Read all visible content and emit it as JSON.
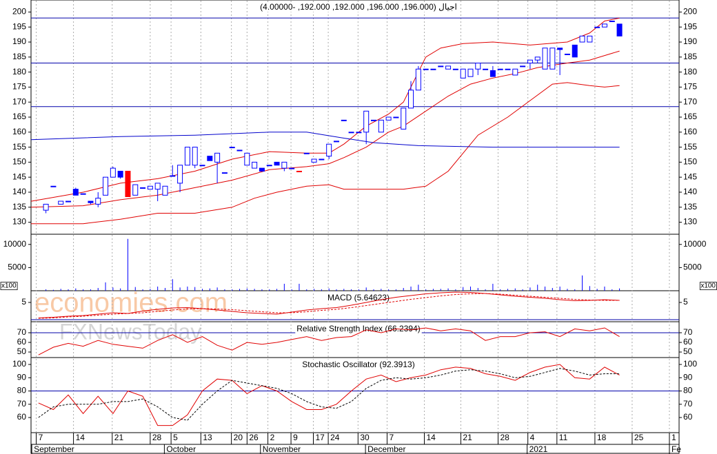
{
  "watermarks": [
    "economies.com",
    "FXNewsToday"
  ],
  "chart_data": [
    {
      "type": "candlestick",
      "title": "اجيال (196.000, 196.000, 192.000, 192.000, -4.00000)",
      "x": [
        0,
        1,
        2,
        3,
        4,
        5,
        6,
        7,
        8,
        9,
        10,
        11,
        12,
        13,
        14,
        15,
        16,
        17,
        18,
        19,
        20,
        21,
        22,
        23,
        24,
        25,
        26,
        27,
        28,
        29,
        30,
        31,
        32,
        33,
        34,
        35,
        36,
        37,
        38,
        39,
        40,
        41,
        42,
        43,
        44,
        45,
        46,
        47,
        48,
        49,
        50,
        51,
        52,
        53,
        54,
        55,
        56,
        57,
        58,
        59,
        60,
        61,
        62,
        63,
        64,
        65,
        66,
        67,
        68,
        69,
        70,
        71,
        72,
        73,
        74,
        75,
        76,
        77
      ],
      "open": [
        134,
        142,
        136,
        137,
        141,
        139.5,
        137,
        136,
        139,
        145,
        147,
        147,
        139,
        141.5,
        141,
        141,
        139,
        145.5,
        143,
        149,
        149,
        149,
        152,
        150,
        146.5,
        155,
        154,
        149,
        148,
        148,
        149,
        150,
        148,
        148,
        147,
        153,
        150,
        151,
        152,
        157,
        164,
        160,
        160,
        160,
        164,
        160,
        164,
        165,
        161,
        168,
        174,
        181,
        181,
        182,
        181,
        181,
        178,
        178.5,
        181,
        181,
        180.5,
        181,
        181,
        179,
        182,
        183,
        184,
        181,
        181,
        188,
        186,
        189,
        190,
        190,
        195,
        195,
        197,
        196
      ],
      "high": [
        136,
        142,
        137,
        137,
        141.5,
        139.5,
        137,
        140,
        145,
        148.5,
        147,
        147,
        142.5,
        141.5,
        142,
        143,
        142,
        149,
        149,
        155,
        155,
        149,
        152,
        153,
        146.5,
        155,
        154,
        153,
        150,
        148,
        149,
        150,
        150,
        148,
        147,
        153,
        151,
        151,
        156,
        157,
        164,
        160,
        160,
        167,
        164,
        164,
        165,
        165,
        168,
        177,
        182,
        181,
        181,
        182,
        182,
        181,
        181,
        181,
        183,
        181,
        182,
        181,
        181,
        181,
        182,
        184,
        185,
        188,
        188,
        188,
        186,
        189,
        192,
        192,
        195,
        196,
        197,
        196
      ],
      "low": [
        133,
        142,
        136,
        137,
        139,
        139.5,
        136,
        135,
        139,
        145,
        144.5,
        138.5,
        139,
        141.5,
        141,
        137,
        139,
        145.5,
        140,
        149,
        148,
        149,
        150.5,
        143,
        146.5,
        155,
        154,
        149,
        148,
        147,
        149,
        149,
        147,
        148,
        147,
        153,
        150,
        151,
        151,
        157,
        164,
        160,
        160,
        156,
        164,
        160,
        164,
        165,
        161,
        168,
        174,
        181,
        181,
        182,
        181,
        181,
        178,
        178.5,
        179,
        181,
        178.5,
        181,
        181,
        179,
        182,
        181,
        183,
        181,
        181,
        179,
        186,
        185,
        190,
        190,
        195,
        195,
        197,
        192
      ],
      "close": [
        136,
        142,
        137,
        137,
        139,
        139.5,
        136.5,
        138,
        145,
        148,
        145,
        138.5,
        142.5,
        141.5,
        142,
        143,
        142,
        145.5,
        149,
        155,
        155,
        149,
        150.5,
        153,
        146.5,
        155,
        154,
        153,
        150,
        147,
        149,
        149,
        150,
        148,
        147,
        153,
        151,
        151,
        156,
        157,
        164,
        160,
        160,
        167,
        164,
        164,
        165,
        165,
        168,
        174,
        181,
        181,
        181,
        182,
        182,
        181,
        181,
        181,
        183,
        181,
        178.5,
        181,
        181,
        181,
        182,
        184,
        185,
        188,
        188,
        187.5,
        186,
        185,
        192,
        192,
        195,
        196,
        197,
        192
      ],
      "colors": [
        "#0000ff",
        "#0000ff",
        "#0000ff",
        "#0000ff",
        "#0000ff",
        "#0000ff",
        "#0000ff",
        "#0000ff",
        "#0000ff",
        "#0000ff",
        "#0000ff",
        "#ff0000",
        "#0000ff",
        "#0000ff",
        "#0000ff",
        "#0000ff",
        "#0000ff",
        "#0000ff",
        "#0000ff",
        "#0000ff",
        "#0000ff",
        "#0000ff",
        "#0000ff",
        "#0000ff",
        "#0000ff",
        "#0000ff",
        "#0000ff",
        "#0000ff",
        "#0000ff",
        "#0000ff",
        "#0000ff",
        "#0000ff",
        "#0000ff",
        "#0000ff",
        "#ff0000",
        "#0000ff",
        "#0000ff",
        "#0000ff",
        "#0000ff",
        "#0000ff",
        "#0000ff",
        "#0000ff",
        "#0000ff",
        "#0000ff",
        "#0000ff",
        "#0000ff",
        "#0000ff",
        "#0000ff",
        "#0000ff",
        "#0000ff",
        "#0000ff",
        "#0000ff",
        "#0000ff",
        "#0000ff",
        "#0000ff",
        "#0000ff",
        "#0000ff",
        "#0000ff",
        "#0000ff",
        "#0000ff",
        "#0000ff",
        "#0000ff",
        "#0000ff",
        "#0000ff",
        "#0000ff",
        "#0000ff",
        "#0000ff",
        "#0000ff",
        "#0000ff",
        "#0000ff",
        "#0000ff",
        "#0000ff",
        "#0000ff",
        "#0000ff",
        "#0000ff",
        "#0000ff",
        "#0000ff",
        "#0000ff"
      ],
      "series": [
        {
          "color": "#e00000",
          "x": [
            -2,
            5,
            10,
            15,
            20,
            25,
            30,
            35,
            38,
            40,
            43,
            46,
            48,
            51,
            53,
            56,
            60,
            65,
            70,
            73,
            75,
            77
          ],
          "values": [
            137,
            140,
            143,
            144.5,
            147,
            151,
            153.5,
            153,
            153,
            156,
            162,
            166,
            170,
            185,
            188,
            189.5,
            190,
            189,
            190,
            193,
            197,
            198
          ]
        },
        {
          "color": "#e00000",
          "x": [
            -2,
            5,
            10,
            15,
            20,
            25,
            30,
            35,
            38,
            40,
            43,
            46,
            48,
            51,
            54,
            57,
            60,
            63,
            66,
            70,
            73,
            75,
            77
          ],
          "values": [
            135,
            135.5,
            137.5,
            139,
            141.5,
            144,
            147.5,
            148.5,
            149.5,
            151.5,
            155,
            160,
            162,
            167,
            172,
            176,
            178,
            179.5,
            181.5,
            183,
            184,
            185.5,
            187
          ]
        },
        {
          "color": "#e00000",
          "x": [
            -2,
            5,
            10,
            15,
            20,
            25,
            28,
            31,
            35,
            38,
            40,
            43,
            48,
            51,
            54,
            58,
            62,
            65,
            68,
            70,
            73,
            75,
            77
          ],
          "values": [
            129.5,
            129.5,
            131,
            133,
            133,
            135,
            138,
            140,
            142,
            142.5,
            141,
            141,
            141,
            142,
            147,
            159,
            165,
            170.5,
            176,
            176.5,
            175.5,
            175,
            175.5
          ]
        },
        {
          "color": "#0000cc",
          "x": [
            -2,
            10,
            20,
            30,
            35,
            40,
            44,
            50,
            60,
            70,
            77
          ],
          "values": [
            157.5,
            158.5,
            159,
            160,
            160,
            158,
            156.5,
            155.5,
            155,
            155,
            155
          ]
        }
      ],
      "hlines": [
        198,
        183,
        168.5
      ],
      "hline_color": "#0000aa",
      "ylim": [
        126,
        204
      ],
      "yticks": [
        130,
        135,
        140,
        145,
        150,
        155,
        160,
        165,
        170,
        175,
        180,
        185,
        190,
        195,
        200
      ],
      "xlim": [
        -2,
        85
      ],
      "xticks": [
        {
          "value": -1.3,
          "label": "7"
        },
        {
          "value": 3.7,
          "label": "14"
        },
        {
          "value": 8.9,
          "label": "21"
        },
        {
          "value": 14.0,
          "label": "28"
        },
        {
          "value": 16.8,
          "label": "5"
        },
        {
          "value": 20.8,
          "label": "13"
        },
        {
          "value": 24.9,
          "label": "20"
        },
        {
          "value": 27.0,
          "label": "26"
        },
        {
          "value": 29.8,
          "label": "2"
        },
        {
          "value": 32.9,
          "label": "9"
        },
        {
          "value": 35.9,
          "label": "17"
        },
        {
          "value": 37.9,
          "label": "24"
        },
        {
          "value": 41.9,
          "label": "30"
        },
        {
          "value": 45.8,
          "label": "7"
        },
        {
          "value": 50.8,
          "label": "14"
        },
        {
          "value": 55.7,
          "label": "21"
        },
        {
          "value": 60.7,
          "label": "28"
        },
        {
          "value": 64.7,
          "label": "4"
        },
        {
          "value": 68.6,
          "label": "11"
        },
        {
          "value": 73.7,
          "label": "18"
        },
        {
          "value": 78.7,
          "label": "25"
        },
        {
          "value": 83.7,
          "label": "1"
        }
      ],
      "months": [
        {
          "value": -1.9,
          "label": "September"
        },
        {
          "value": 15.9,
          "label": "October"
        },
        {
          "value": 28.8,
          "label": "November"
        },
        {
          "value": 42.9,
          "label": "December"
        },
        {
          "value": 64.6,
          "label": "2021"
        },
        {
          "value": 83.7,
          "label": "Fe"
        }
      ],
      "grid": true
    },
    {
      "type": "bar",
      "color": "#0000ff",
      "unit_label": "x100",
      "values": [
        300,
        200,
        400,
        300,
        500,
        300,
        300,
        600,
        1800,
        700,
        500,
        11200,
        800,
        300,
        400,
        900,
        600,
        2500,
        700,
        900,
        800,
        400,
        500,
        700,
        300,
        300,
        400,
        500,
        400,
        300,
        300,
        400,
        1500,
        300,
        1500,
        300,
        400,
        300,
        500,
        300,
        400,
        300,
        300,
        700,
        300,
        400,
        300,
        300,
        600,
        900,
        1300,
        300,
        400,
        400,
        500,
        300,
        800,
        900,
        600,
        300,
        1500,
        300,
        400,
        500,
        300,
        700,
        1300,
        900,
        600,
        900,
        400,
        300,
        3300,
        1000,
        400,
        900,
        300,
        500
      ],
      "ylim": [
        0,
        12200
      ],
      "yticks": [
        5000,
        10000
      ]
    },
    {
      "type": "line",
      "title": "MACD (5.64623)",
      "x": [
        -1,
        1,
        3,
        5,
        7,
        9,
        11,
        13,
        15,
        17,
        19,
        21,
        23,
        25,
        27,
        29,
        31,
        33,
        35,
        37,
        39,
        41,
        43,
        45,
        47,
        49,
        51,
        53,
        55,
        57,
        59,
        61,
        63,
        65,
        67,
        69,
        71,
        73,
        75,
        77
      ],
      "series": [
        {
          "color": "#e00000",
          "dash": false,
          "values": [
            0.5,
            0.7,
            1,
            1.2,
            1.6,
            2,
            1.8,
            2.5,
            3,
            3.4,
            3.5,
            3.2,
            2.8,
            2.4,
            2,
            1.8,
            1.6,
            2.2,
            2.8,
            3.2,
            3.5,
            4.2,
            5,
            5.8,
            6.5,
            7,
            7.5,
            7.8,
            8,
            7.9,
            7.6,
            7.2,
            6.8,
            6.5,
            6.2,
            5.8,
            5.5,
            5.6,
            5.8,
            5.6
          ]
        },
        {
          "color": "#e00000",
          "dash": true,
          "values": [
            0.4,
            0.5,
            0.8,
            1,
            1.3,
            1.6,
            1.8,
            2,
            2.4,
            2.8,
            3.1,
            3.2,
            3.1,
            2.9,
            2.6,
            2.3,
            2,
            2,
            2.3,
            2.7,
            3,
            3.5,
            4.1,
            4.7,
            5.3,
            5.9,
            6.4,
            6.9,
            7.3,
            7.5,
            7.6,
            7.4,
            7.1,
            6.8,
            6.5,
            6.2,
            5.9,
            5.7,
            5.6,
            5.6
          ]
        }
      ],
      "hlines": [
        0
      ],
      "hline_color": "#0000aa",
      "ylim": [
        -0.6,
        8.4
      ],
      "yticks": [
        5
      ]
    },
    {
      "type": "line",
      "title": "Relative Strength Index (66.2394)",
      "x": [
        -1,
        1,
        3,
        5,
        7,
        9,
        11,
        13,
        15,
        17,
        19,
        21,
        23,
        25,
        27,
        29,
        31,
        33,
        35,
        37,
        39,
        41,
        43,
        45,
        47,
        49,
        51,
        53,
        55,
        57,
        59,
        61,
        63,
        65,
        67,
        69,
        71,
        73,
        75,
        77
      ],
      "series": [
        {
          "color": "#e00000",
          "dash": false,
          "values": [
            47,
            55,
            59,
            56,
            62,
            58,
            56,
            54,
            62,
            68,
            60,
            66,
            57,
            52,
            60,
            58,
            60,
            63,
            66,
            62,
            65,
            66,
            73,
            70,
            74,
            73,
            75,
            72,
            74,
            72,
            62,
            66,
            66,
            70,
            71,
            66,
            74,
            72,
            75,
            66
          ]
        }
      ],
      "hlines": [
        70
      ],
      "hline_color": "#0000aa",
      "ylim": [
        44.3,
        81.4
      ],
      "yticks": [
        50,
        60,
        70
      ]
    },
    {
      "type": "line",
      "title": "Stochastic Oscillator (92.3913)",
      "x": [
        -1,
        1,
        3,
        5,
        7,
        9,
        11,
        13,
        15,
        17,
        19,
        21,
        23,
        25,
        27,
        29,
        31,
        33,
        35,
        37,
        39,
        41,
        43,
        45,
        47,
        49,
        51,
        53,
        55,
        57,
        59,
        61,
        63,
        65,
        67,
        69,
        71,
        73,
        75,
        77
      ],
      "series": [
        {
          "color": "#e00000",
          "dash": false,
          "values": [
            71,
            66,
            77,
            63,
            76,
            63,
            80,
            76,
            54,
            54,
            62,
            80,
            89,
            88,
            78,
            84,
            80,
            72,
            66,
            66,
            70,
            80,
            89,
            92,
            87,
            90,
            92,
            96,
            98,
            97,
            93,
            91,
            88,
            94,
            98,
            100,
            90,
            89,
            98,
            92
          ]
        },
        {
          "color": "#000000",
          "dash": true,
          "values": [
            60,
            68,
            70,
            70,
            70,
            72,
            72,
            74,
            68,
            60,
            58,
            70,
            80,
            88,
            86,
            84,
            82,
            78,
            72,
            68,
            67,
            72,
            82,
            88,
            90,
            89,
            90,
            92,
            95,
            96,
            95,
            93,
            90,
            91,
            94,
            97,
            95,
            92,
            93,
            93
          ]
        }
      ],
      "hlines": [
        80
      ],
      "hline_color": "#0000aa",
      "ylim": [
        48.6,
        105.2
      ],
      "yticks": [
        60,
        70,
        80,
        90,
        100
      ]
    }
  ]
}
